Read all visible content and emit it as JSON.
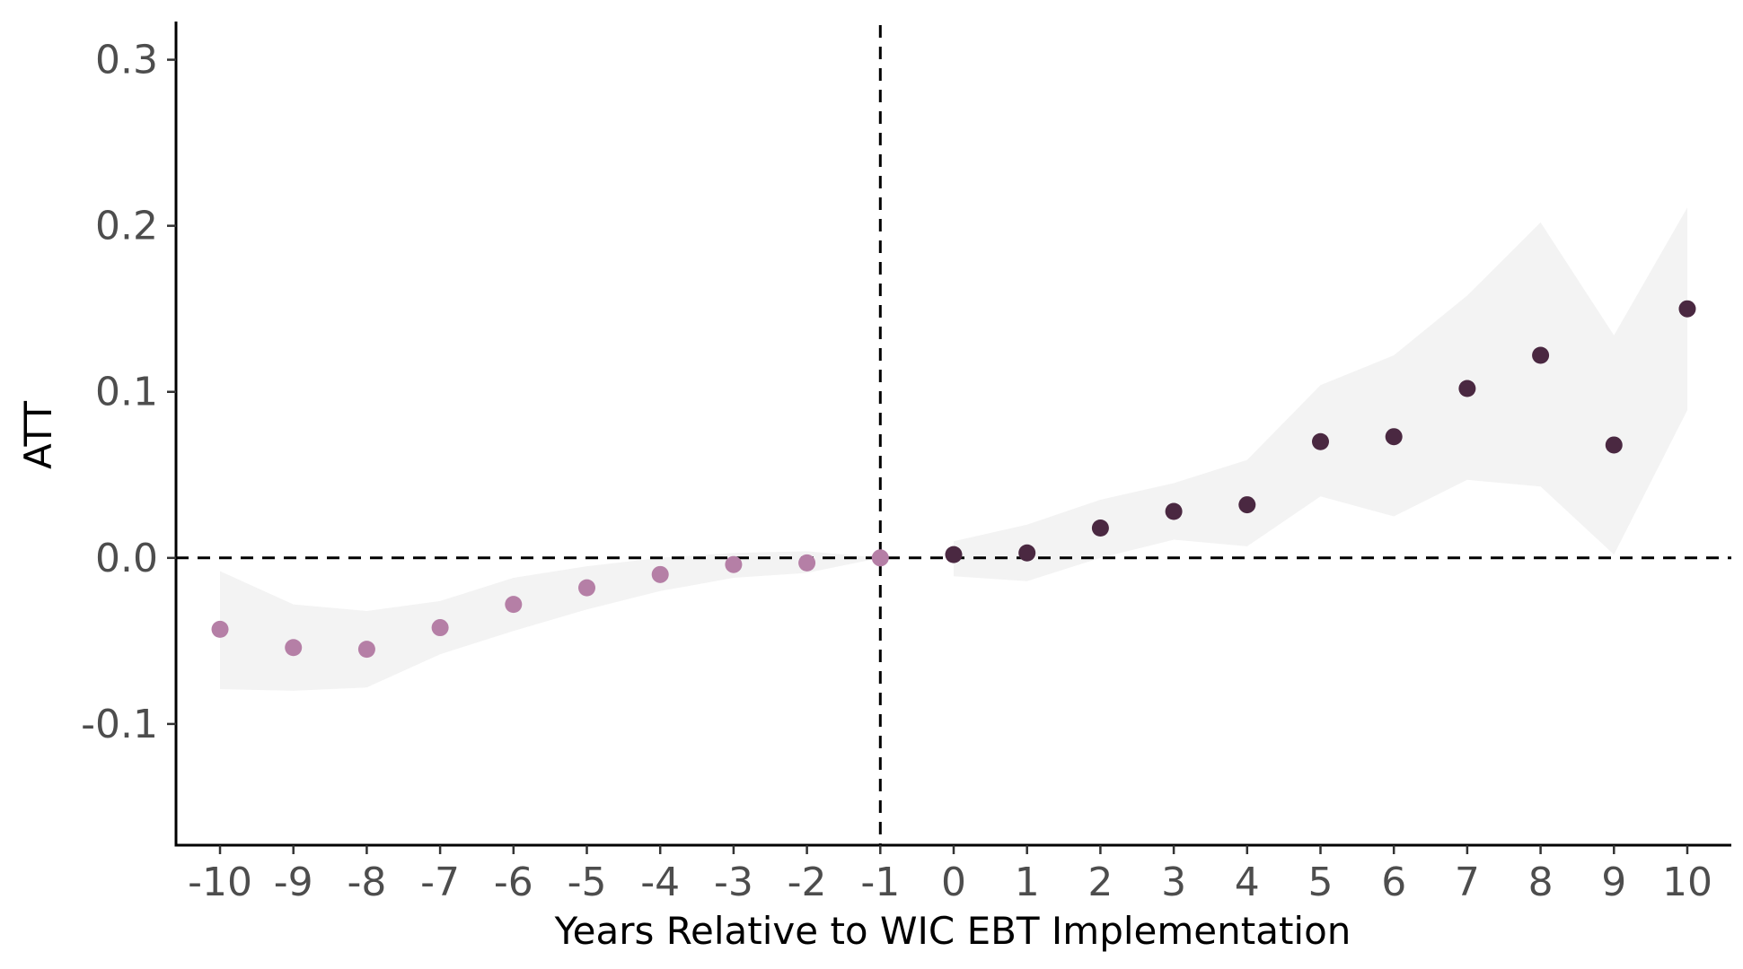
{
  "chart_data": {
    "type": "scatter",
    "xlabel": "Years Relative to WIC EBT Implementation",
    "ylabel": "ATT",
    "x": [
      -10,
      -9,
      -8,
      -7,
      -6,
      -5,
      -4,
      -3,
      -2,
      -1,
      0,
      1,
      2,
      3,
      4,
      5,
      6,
      7,
      8,
      9,
      10
    ],
    "xlim": [
      -10.6,
      10.6
    ],
    "ylim": [
      -0.173,
      0.323
    ],
    "x_ticks": [
      "-10",
      "-9",
      "-8",
      "-7",
      "-6",
      "-5",
      "-4",
      "-3",
      "-2",
      "-1",
      "0",
      "1",
      "2",
      "3",
      "4",
      "5",
      "6",
      "7",
      "8",
      "9",
      "10"
    ],
    "y_ticks": [
      {
        "value": 0.3,
        "label": "0.3"
      },
      {
        "value": 0.2,
        "label": "0.2"
      },
      {
        "value": 0.1,
        "label": "0.1"
      },
      {
        "value": 0.0,
        "label": "0.0"
      },
      {
        "value": -0.1,
        "label": "-0.1"
      }
    ],
    "series": [
      {
        "period": "pre",
        "color": "#b57fa6",
        "x": [
          -10,
          -9,
          -8,
          -7,
          -6,
          -5,
          -4,
          -3,
          -2,
          -1
        ],
        "values": [
          -0.043,
          -0.054,
          -0.055,
          -0.042,
          -0.028,
          -0.018,
          -0.01,
          -0.004,
          -0.003,
          0.0
        ],
        "ci_lower": [
          -0.079,
          -0.08,
          -0.078,
          -0.058,
          -0.044,
          -0.031,
          -0.02,
          -0.012,
          -0.009,
          0.0
        ],
        "ci_upper": [
          -0.008,
          -0.028,
          -0.032,
          -0.026,
          -0.012,
          -0.005,
          0.0,
          0.003,
          0.004,
          0.0
        ]
      },
      {
        "period": "post",
        "color": "#4a2841",
        "x": [
          0,
          1,
          2,
          3,
          4,
          5,
          6,
          7,
          8,
          9,
          10
        ],
        "values": [
          0.002,
          0.003,
          0.018,
          0.028,
          0.032,
          0.07,
          0.073,
          0.102,
          0.122,
          0.068,
          0.15
        ],
        "ci_lower": [
          -0.011,
          -0.014,
          0.0,
          0.011,
          0.007,
          0.037,
          0.025,
          0.047,
          0.043,
          0.002,
          0.089
        ],
        "ci_upper": [
          0.01,
          0.02,
          0.035,
          0.045,
          0.059,
          0.104,
          0.122,
          0.158,
          0.202,
          0.134,
          0.211
        ]
      }
    ],
    "ci_band_color": "#f3f3f3",
    "reference_lines": {
      "horizontal_y": 0.0,
      "vertical_x": -1,
      "style": "dashed"
    },
    "grid": false,
    "legend": "none"
  }
}
